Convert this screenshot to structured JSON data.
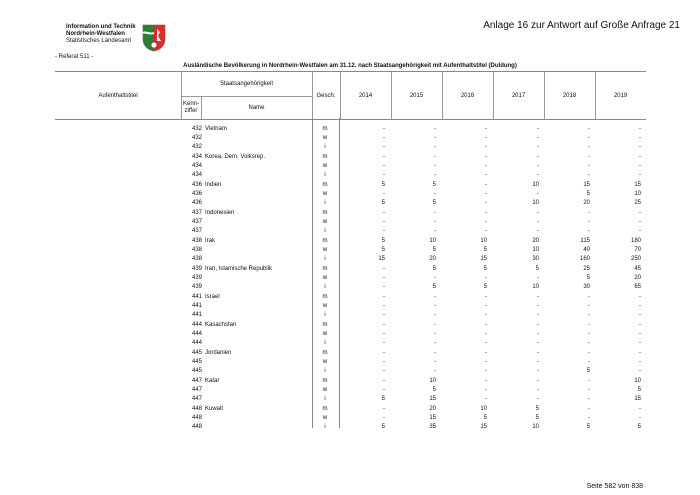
{
  "header": {
    "org_line1": "Information und Technik",
    "org_line2": "Nordrhein-Westfalen",
    "org_line3": "Statistisches Landesamt",
    "annex": "Anlage 16 zur Antwort auf Große Anfrage 21",
    "referat": "- Referat 511 -"
  },
  "table": {
    "title": "Ausländische Bevölkerung in Nordrhein-Westfalen am 31.12. nach Staatsangehörigkeit mit Aufenthaltstitel (Duldung)",
    "col_aufenthaltstitel": "Aufenthaltstitel",
    "col_staat": "Staatsangehörigkeit",
    "col_kennziffer": "Kenn-\nziffer",
    "col_name": "Name",
    "col_gesch": "Gesch.",
    "years": [
      "2014",
      "2015",
      "2016",
      "2017",
      "2018",
      "2019"
    ],
    "groups": [
      {
        "code": "432",
        "name": "Vietnam",
        "rows": [
          [
            "m",
            [
              "-",
              "-",
              "-",
              "-",
              "-",
              "-"
            ]
          ],
          [
            "w",
            [
              "-",
              "-",
              "-",
              "-",
              "-",
              "-"
            ]
          ],
          [
            "i",
            [
              "-",
              "-",
              "-",
              "-",
              "-",
              "-"
            ]
          ]
        ]
      },
      {
        "code": "434",
        "name": "Korea, Dem. Volksrep.",
        "rows": [
          [
            "m",
            [
              "-",
              "-",
              "-",
              "-",
              "-",
              "-"
            ]
          ],
          [
            "w",
            [
              "-",
              "-",
              "-",
              "-",
              "-",
              "-"
            ]
          ],
          [
            "i",
            [
              "-",
              "-",
              "-",
              "-",
              "-",
              "-"
            ]
          ]
        ]
      },
      {
        "code": "436",
        "name": "Indien",
        "rows": [
          [
            "m",
            [
              "5",
              "5",
              "-",
              "10",
              "15",
              "15"
            ]
          ],
          [
            "w",
            [
              "-",
              "-",
              "-",
              "-",
              "5",
              "10"
            ]
          ],
          [
            "i",
            [
              "5",
              "5",
              "-",
              "10",
              "20",
              "25"
            ]
          ]
        ]
      },
      {
        "code": "437",
        "name": "Indonesien",
        "rows": [
          [
            "m",
            [
              "-",
              "-",
              "-",
              "-",
              "-",
              "-"
            ]
          ],
          [
            "w",
            [
              "-",
              "-",
              "-",
              "-",
              "-",
              "-"
            ]
          ],
          [
            "i",
            [
              "-",
              "-",
              "-",
              "-",
              "-",
              "-"
            ]
          ]
        ]
      },
      {
        "code": "438",
        "name": "Irak",
        "rows": [
          [
            "m",
            [
              "5",
              "10",
              "10",
              "20",
              "115",
              "180"
            ]
          ],
          [
            "w",
            [
              "5",
              "5",
              "5",
              "10",
              "40",
              "70"
            ]
          ],
          [
            "i",
            [
              "15",
              "20",
              "15",
              "30",
              "160",
              "250"
            ]
          ]
        ]
      },
      {
        "code": "439",
        "name": "Iran, Islamische Republik",
        "rows": [
          [
            "m",
            [
              "-",
              "5",
              "5",
              "5",
              "25",
              "45"
            ]
          ],
          [
            "w",
            [
              "-",
              "-",
              "-",
              "-",
              "5",
              "20"
            ]
          ],
          [
            "i",
            [
              "-",
              "5",
              "5",
              "10",
              "30",
              "65"
            ]
          ]
        ]
      },
      {
        "code": "441",
        "name": "Israel",
        "rows": [
          [
            "m",
            [
              "-",
              "-",
              "-",
              "-",
              "-",
              "-"
            ]
          ],
          [
            "w",
            [
              "-",
              "-",
              "-",
              "-",
              "-",
              "-"
            ]
          ],
          [
            "i",
            [
              "-",
              "-",
              "-",
              "-",
              "-",
              "-"
            ]
          ]
        ]
      },
      {
        "code": "444",
        "name": "Kasachstan",
        "rows": [
          [
            "m",
            [
              "-",
              "-",
              "-",
              "-",
              "-",
              "-"
            ]
          ],
          [
            "w",
            [
              "-",
              "-",
              "-",
              "-",
              "-",
              "-"
            ]
          ],
          [
            "i",
            [
              "-",
              "-",
              "-",
              "-",
              "-",
              "-"
            ]
          ]
        ]
      },
      {
        "code": "445",
        "name": "Jordanien",
        "rows": [
          [
            "m",
            [
              "-",
              "-",
              "-",
              "-",
              "-",
              "-"
            ]
          ],
          [
            "w",
            [
              "-",
              "-",
              "-",
              "-",
              "-",
              "-"
            ]
          ],
          [
            "i",
            [
              "-",
              "-",
              "-",
              "-",
              "5",
              "-"
            ]
          ]
        ]
      },
      {
        "code": "447",
        "name": "Katar",
        "rows": [
          [
            "m",
            [
              "-",
              "10",
              "-",
              "-",
              "-",
              "10"
            ]
          ],
          [
            "w",
            [
              "-",
              "5",
              "-",
              "-",
              "-",
              "5"
            ]
          ],
          [
            "i",
            [
              "5",
              "15",
              "-",
              "-",
              "-",
              "15"
            ]
          ]
        ]
      },
      {
        "code": "448",
        "name": "Kuwait",
        "rows": [
          [
            "m",
            [
              "-",
              "20",
              "10",
              "5",
              "-",
              "-"
            ]
          ],
          [
            "w",
            [
              "-",
              "15",
              "5",
              "5",
              "-",
              "-"
            ]
          ],
          [
            "i",
            [
              "5",
              "35",
              "15",
              "10",
              "5",
              "5"
            ]
          ]
        ]
      }
    ]
  },
  "footer": {
    "page": "Seite 582 von 838"
  }
}
